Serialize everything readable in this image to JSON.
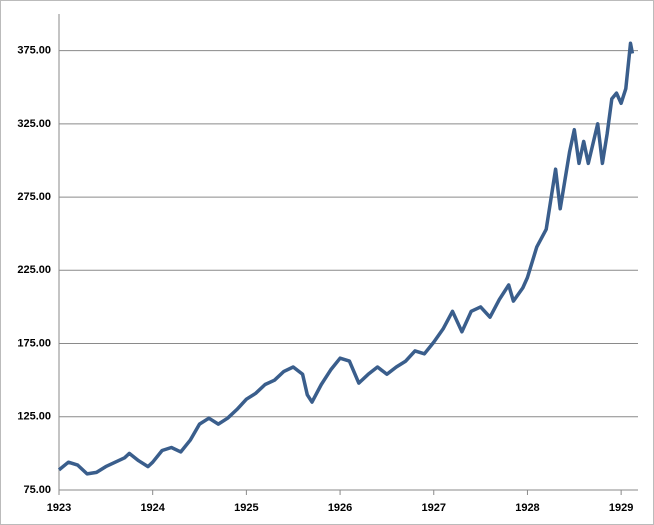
{
  "chart_data": {
    "type": "line",
    "x": [
      1923.0,
      1923.1,
      1923.2,
      1923.3,
      1923.4,
      1923.5,
      1923.6,
      1923.7,
      1923.75,
      1923.85,
      1923.95,
      1924.0,
      1924.1,
      1924.2,
      1924.3,
      1924.4,
      1924.5,
      1924.6,
      1924.7,
      1924.8,
      1924.9,
      1925.0,
      1925.1,
      1925.2,
      1925.3,
      1925.4,
      1925.5,
      1925.6,
      1925.65,
      1925.7,
      1925.8,
      1925.9,
      1926.0,
      1926.1,
      1926.2,
      1926.3,
      1926.4,
      1926.5,
      1926.6,
      1926.7,
      1926.8,
      1926.9,
      1927.0,
      1927.1,
      1927.2,
      1927.3,
      1927.4,
      1927.5,
      1927.6,
      1927.7,
      1927.8,
      1927.85,
      1927.95,
      1928.0,
      1928.1,
      1928.2,
      1928.3,
      1928.35,
      1928.45,
      1928.5,
      1928.55,
      1928.6,
      1928.65,
      1928.75,
      1928.8,
      1928.85,
      1928.9,
      1928.95,
      1929.0,
      1929.05,
      1929.1,
      1929.12
    ],
    "series": [
      {
        "color": "#3a5e8c",
        "values": [
          88.7,
          94,
          92,
          86,
          87,
          91,
          94,
          97,
          100,
          95,
          91,
          94,
          102,
          104,
          101,
          109,
          120,
          124,
          120,
          124,
          130,
          137,
          141,
          147,
          150,
          156,
          159,
          154,
          140,
          135,
          147,
          157,
          165,
          163,
          148,
          154,
          159,
          154,
          159,
          163,
          170,
          168,
          176,
          185,
          197,
          183,
          197,
          200,
          193,
          205,
          215,
          204,
          213,
          220,
          241,
          253,
          294,
          267,
          306,
          321,
          298,
          313,
          298,
          325,
          298,
          318,
          342,
          346,
          339,
          349,
          380,
          373
        ]
      }
    ],
    "xlim": [
      1923,
      1929.18
    ],
    "xticks": [
      1923,
      1924,
      1925,
      1926,
      1927,
      1928,
      1929
    ],
    "ylim": [
      75,
      400
    ],
    "yticks": [
      {
        "value": 75,
        "label": "75.00"
      },
      {
        "value": 125,
        "label": "125.00"
      },
      {
        "value": 175,
        "label": "175.00"
      },
      {
        "value": 225,
        "label": "225.00"
      },
      {
        "value": 275,
        "label": "275.00"
      },
      {
        "value": 325,
        "label": "325.00"
      },
      {
        "value": 375,
        "label": "375.00"
      }
    ],
    "grid": true
  }
}
